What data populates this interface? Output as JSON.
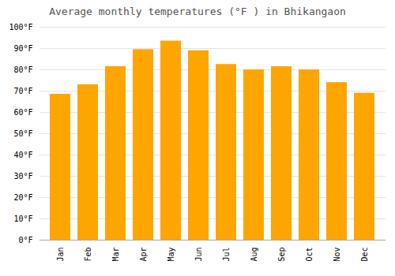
{
  "chart_data": {
    "type": "bar",
    "title": "Average monthly temperatures (°F ) in Bhikangaon",
    "categories": [
      "Jan",
      "Feb",
      "Mar",
      "Apr",
      "May",
      "Jun",
      "Jul",
      "Aug",
      "Sep",
      "Oct",
      "Nov",
      "Dec"
    ],
    "values": [
      68.5,
      73.0,
      81.5,
      89.5,
      93.5,
      89.0,
      82.5,
      80.0,
      81.5,
      80.0,
      74.0,
      69.0
    ],
    "color": "#FFA500",
    "ylim": [
      0,
      100
    ],
    "yticks": [
      {
        "value": 0,
        "label": "0°F"
      },
      {
        "value": 10,
        "label": "10°F"
      },
      {
        "value": 20,
        "label": "20°F"
      },
      {
        "value": 30,
        "label": "30°F"
      },
      {
        "value": 40,
        "label": "40°F"
      },
      {
        "value": 50,
        "label": "50°F"
      },
      {
        "value": 60,
        "label": "60°F"
      },
      {
        "value": 70,
        "label": "70°F"
      },
      {
        "value": 80,
        "label": "80°F"
      },
      {
        "value": 90,
        "label": "90°F"
      },
      {
        "value": 100,
        "label": "100°F"
      }
    ],
    "grid": true
  }
}
